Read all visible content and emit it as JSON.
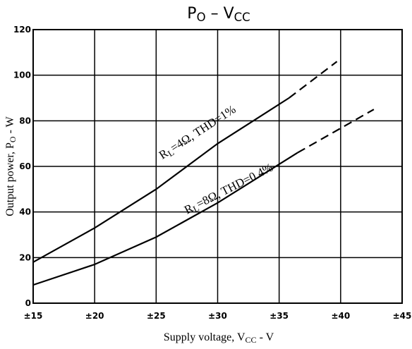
{
  "chart_data": {
    "type": "line",
    "title": [
      "P",
      "O",
      " – ",
      "V",
      "CC"
    ],
    "xlabel": [
      "Supply voltage, V",
      "CC",
      " - V"
    ],
    "ylabel": [
      "Output power, P",
      "O",
      " - W"
    ],
    "xlim": [
      15,
      45
    ],
    "xticks": [
      {
        "value": 15,
        "label": "±15"
      },
      {
        "value": 20,
        "label": "±20"
      },
      {
        "value": 25,
        "label": "±25"
      },
      {
        "value": 30,
        "label": "±30"
      },
      {
        "value": 35,
        "label": "±35"
      },
      {
        "value": 40,
        "label": "±40"
      },
      {
        "value": 45,
        "label": "±45"
      }
    ],
    "ylim": [
      0,
      120
    ],
    "yticks": [
      0,
      20,
      40,
      60,
      80,
      100,
      120
    ],
    "grid": true,
    "series": [
      {
        "color": "#000000",
        "dash": false,
        "x": [
          15,
          20,
          25,
          30,
          35.8
        ],
        "values": [
          18,
          33,
          50,
          70,
          90
        ]
      },
      {
        "color": "#000000",
        "dash": true,
        "x": [
          35.8,
          39.7
        ],
        "values": [
          90,
          106
        ]
      },
      {
        "color": "#000000",
        "dash": false,
        "x": [
          15,
          20,
          25,
          30,
          36.5
        ],
        "values": [
          8,
          17,
          29,
          44,
          66
        ]
      },
      {
        "color": "#000000",
        "dash": true,
        "x": [
          36.5,
          42.7
        ],
        "values": [
          66,
          85
        ]
      }
    ],
    "annotations": [
      {
        "parts": [
          "R",
          "L",
          "=4Ω, THD=1%"
        ],
        "x": 25.5,
        "y": 63,
        "angle": -33
      },
      {
        "parts": [
          "R",
          "L",
          "=8Ω, THD=0.4%"
        ],
        "x": 27.5,
        "y": 39,
        "angle": -27
      }
    ]
  }
}
